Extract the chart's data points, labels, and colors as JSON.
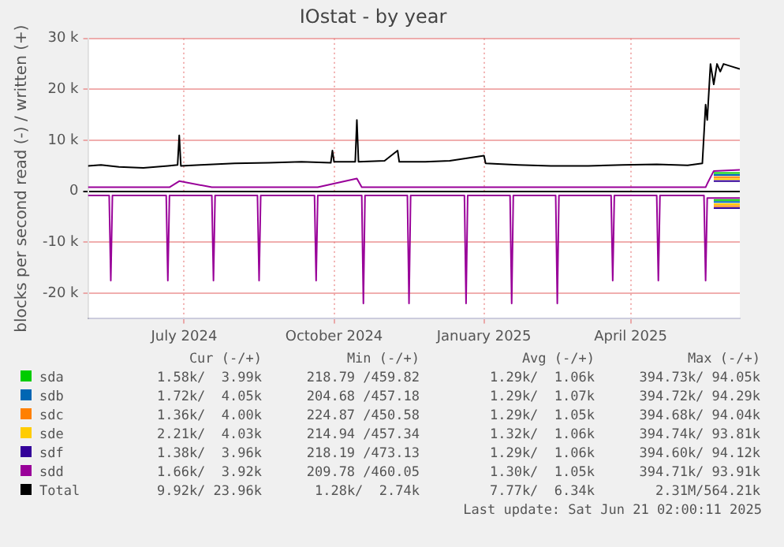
{
  "chart_data": {
    "type": "line",
    "title": "IOstat - by year",
    "ylabel": "blocks per second read (-) / written (+)",
    "x": [
      "2024-05-17",
      "2024-05-30",
      "2024-05-31",
      "2024-06-01",
      "2024-07-04",
      "2024-07-05",
      "2024-07-06",
      "2024-07-12",
      "2024-08-01",
      "2024-08-02",
      "2024-08-03",
      "2024-08-29",
      "2024-08-30",
      "2024-08-31",
      "2024-10-03",
      "2024-10-04",
      "2024-10-05",
      "2024-10-29",
      "2024-11-01",
      "2024-11-02",
      "2024-11-03",
      "2024-11-29",
      "2024-11-30",
      "2024-12-01",
      "2025-01-03",
      "2025-01-04",
      "2025-01-05",
      "2025-01-31",
      "2025-02-01",
      "2025-02-02",
      "2025-02-28",
      "2025-03-01",
      "2025-03-02",
      "2025-04-03",
      "2025-04-04",
      "2025-04-05",
      "2025-05-01",
      "2025-05-02",
      "2025-05-03",
      "2025-05-30",
      "2025-05-31",
      "2025-06-01",
      "2025-06-05",
      "2025-06-21"
    ],
    "series": [
      {
        "name": "sda",
        "color": "#00cc00",
        "values": [
          null,
          null,
          null,
          null,
          null,
          null,
          null,
          null,
          null,
          null,
          null,
          null,
          null,
          null,
          null,
          null,
          null,
          null,
          null,
          null,
          null,
          null,
          null,
          null,
          null,
          null,
          null,
          null,
          null,
          null,
          null,
          null,
          null,
          null,
          null,
          null,
          null,
          null,
          null,
          null,
          null,
          null,
          3600,
          3600
        ]
      },
      {
        "color": "#00cc00",
        "values": [
          null,
          null,
          null,
          null,
          null,
          null,
          null,
          null,
          null,
          null,
          null,
          null,
          null,
          null,
          null,
          null,
          null,
          null,
          null,
          null,
          null,
          null,
          null,
          null,
          null,
          null,
          null,
          null,
          null,
          null,
          null,
          null,
          null,
          null,
          null,
          null,
          null,
          null,
          null,
          null,
          null,
          null,
          -1700,
          -1700
        ]
      },
      {
        "name": "sdb",
        "color": "#0066b3",
        "values": [
          null,
          null,
          null,
          null,
          null,
          null,
          null,
          null,
          null,
          null,
          null,
          null,
          null,
          null,
          null,
          null,
          null,
          null,
          null,
          null,
          null,
          null,
          null,
          null,
          null,
          null,
          null,
          null,
          null,
          null,
          null,
          null,
          null,
          null,
          null,
          null,
          null,
          null,
          null,
          null,
          null,
          null,
          3200,
          3200
        ]
      },
      {
        "color": "#0066b3",
        "values": [
          null,
          null,
          null,
          null,
          null,
          null,
          null,
          null,
          null,
          null,
          null,
          null,
          null,
          null,
          null,
          null,
          null,
          null,
          null,
          null,
          null,
          null,
          null,
          null,
          null,
          null,
          null,
          null,
          null,
          null,
          null,
          null,
          null,
          null,
          null,
          null,
          null,
          null,
          null,
          null,
          null,
          null,
          -2100,
          -2100
        ]
      },
      {
        "name": "sdc",
        "color": "#ff8000",
        "values": [
          null,
          null,
          null,
          null,
          null,
          null,
          null,
          null,
          null,
          null,
          null,
          null,
          null,
          null,
          null,
          null,
          null,
          null,
          null,
          null,
          null,
          null,
          null,
          null,
          null,
          null,
          null,
          null,
          null,
          null,
          null,
          null,
          null,
          null,
          null,
          null,
          null,
          null,
          null,
          null,
          null,
          null,
          2800,
          2800
        ]
      },
      {
        "color": "#ff8000",
        "values": [
          null,
          null,
          null,
          null,
          null,
          null,
          null,
          null,
          null,
          null,
          null,
          null,
          null,
          null,
          null,
          null,
          null,
          null,
          null,
          null,
          null,
          null,
          null,
          null,
          null,
          null,
          null,
          null,
          null,
          null,
          null,
          null,
          null,
          null,
          null,
          null,
          null,
          null,
          null,
          null,
          null,
          null,
          -2900,
          -2900
        ]
      },
      {
        "name": "sde",
        "color": "#ffcc00",
        "values": [
          null,
          null,
          null,
          null,
          null,
          null,
          null,
          null,
          null,
          null,
          null,
          null,
          null,
          null,
          null,
          null,
          null,
          null,
          null,
          null,
          null,
          null,
          null,
          null,
          null,
          null,
          null,
          null,
          null,
          null,
          null,
          null,
          null,
          null,
          null,
          null,
          null,
          null,
          null,
          null,
          null,
          null,
          2400,
          2400
        ]
      },
      {
        "color": "#ffcc00",
        "values": [
          null,
          null,
          null,
          null,
          null,
          null,
          null,
          null,
          null,
          null,
          null,
          null,
          null,
          null,
          null,
          null,
          null,
          null,
          null,
          null,
          null,
          null,
          null,
          null,
          null,
          null,
          null,
          null,
          null,
          null,
          null,
          null,
          null,
          null,
          null,
          null,
          null,
          null,
          null,
          null,
          null,
          null,
          -2500,
          -2500
        ]
      },
      {
        "name": "sdf",
        "color": "#330099",
        "values": [
          null,
          null,
          null,
          null,
          null,
          null,
          null,
          null,
          null,
          null,
          null,
          null,
          null,
          null,
          null,
          null,
          null,
          null,
          null,
          null,
          null,
          null,
          null,
          null,
          null,
          null,
          null,
          null,
          null,
          null,
          null,
          null,
          null,
          null,
          null,
          null,
          null,
          null,
          null,
          null,
          null,
          null,
          2000,
          2000
        ]
      },
      {
        "color": "#330099",
        "values": [
          null,
          null,
          null,
          null,
          null,
          null,
          null,
          null,
          null,
          null,
          null,
          null,
          null,
          null,
          null,
          null,
          null,
          null,
          null,
          null,
          null,
          null,
          null,
          null,
          null,
          null,
          null,
          null,
          null,
          null,
          null,
          null,
          null,
          null,
          null,
          null,
          null,
          null,
          null,
          null,
          null,
          null,
          -3300,
          -3300
        ]
      },
      {
        "name": "sdd",
        "color": "#990099",
        "values": [
          800,
          800,
          800,
          800,
          800,
          800,
          800,
          2000,
          800,
          800,
          800,
          800,
          800,
          800,
          800,
          800,
          800,
          2500,
          800,
          800,
          800,
          800,
          800,
          800,
          800,
          800,
          800,
          800,
          800,
          800,
          800,
          800,
          800,
          800,
          800,
          800,
          800,
          800,
          800,
          800,
          800,
          1500,
          4000,
          4200
        ]
      },
      {
        "color": "#990099",
        "values": [
          -800,
          -800,
          -17500,
          -800,
          -800,
          -17500,
          -800,
          -800,
          -800,
          -17500,
          -800,
          -800,
          -17500,
          -800,
          -800,
          -17500,
          -800,
          -800,
          -800,
          -22000,
          -800,
          -800,
          -22000,
          -800,
          -800,
          -22000,
          -800,
          -800,
          -22000,
          -800,
          -800,
          -22000,
          -800,
          -800,
          -17500,
          -800,
          -800,
          -17500,
          -800,
          -800,
          -17500,
          -1300,
          -1300,
          -1300
        ]
      },
      {
        "name": "Total",
        "color": "#000000",
        "x": [
          "2024-05-17",
          "2024-05-25",
          "2024-06-05",
          "2024-06-20",
          "2024-07-05",
          "2024-07-11",
          "2024-07-12",
          "2024-07-13",
          "2024-07-25",
          "2024-08-15",
          "2024-09-05",
          "2024-09-25",
          "2024-10-13",
          "2024-10-14",
          "2024-10-15",
          "2024-10-28",
          "2024-10-29",
          "2024-10-30",
          "2024-11-15",
          "2024-11-23",
          "2024-11-24",
          "2024-12-10",
          "2024-12-25",
          "2025-01-15",
          "2025-01-16",
          "2025-02-05",
          "2025-02-25",
          "2025-03-20",
          "2025-04-10",
          "2025-05-01",
          "2025-05-20",
          "2025-05-29",
          "2025-05-31",
          "2025-06-01",
          "2025-06-03",
          "2025-06-05",
          "2025-06-07",
          "2025-06-09",
          "2025-06-11",
          "2025-06-16",
          "2025-06-21"
        ],
        "values": [
          5000,
          5200,
          4800,
          4600,
          5000,
          5200,
          11000,
          5000,
          5200,
          5500,
          5600,
          5800,
          5600,
          8000,
          5800,
          5800,
          14000,
          5800,
          6000,
          8000,
          5800,
          5800,
          6000,
          7000,
          5500,
          5200,
          5000,
          5000,
          5200,
          5300,
          5100,
          5500,
          17000,
          14000,
          25000,
          21000,
          25000,
          23500,
          25000,
          24500,
          24000
        ]
      }
    ],
    "xlim": [
      "2024-05-17",
      "2025-06-21"
    ],
    "xticks": [
      {
        "value": "2024-07-15",
        "label": "July 2024"
      },
      {
        "value": "2024-10-15",
        "label": "October 2024"
      },
      {
        "value": "2025-01-15",
        "label": "January 2025"
      },
      {
        "value": "2025-04-15",
        "label": "April 2025"
      }
    ],
    "ylim": [
      -25000,
      30000
    ],
    "yticks": [
      {
        "value": -20000,
        "label": "-20 k"
      },
      {
        "value": -10000,
        "label": "-10 k"
      },
      {
        "value": 0,
        "label": "0"
      },
      {
        "value": 10000,
        "label": "10 k"
      },
      {
        "value": 20000,
        "label": "20 k"
      },
      {
        "value": 30000,
        "label": "30 k"
      }
    ],
    "grid": true,
    "legend": "bottom",
    "annotations": [
      "Cur (-/+)",
      "Min (-/+)",
      "Avg (-/+)",
      "Max (-/+)",
      "1.58k/  3.99k",
      "218.79 /459.82",
      "1.29k/  1.06k",
      "394.73k/ 94.05k",
      "1.72k/  4.05k",
      "204.68 /457.18",
      "1.29k/  1.07k",
      "394.72k/ 94.29k",
      "1.36k/  4.00k",
      "224.87 /450.58",
      "1.29k/  1.05k",
      "394.68k/ 94.04k",
      "2.21k/  4.03k",
      "214.94 /457.34",
      "1.32k/  1.06k",
      "394.74k/ 93.81k",
      "1.38k/  3.96k",
      "218.19 /473.13",
      "1.29k/  1.06k",
      "394.60k/ 94.12k",
      "1.66k/  3.92k",
      "209.78 /460.05",
      "1.30k/  1.05k",
      "394.71k/ 93.91k",
      "9.92k/ 23.96k",
      "1.28k/  2.74k",
      "7.77k/  6.34k",
      "2.31M/564.21k",
      "Last update: Sat Jun 21 02:00:11 2025"
    ]
  }
}
